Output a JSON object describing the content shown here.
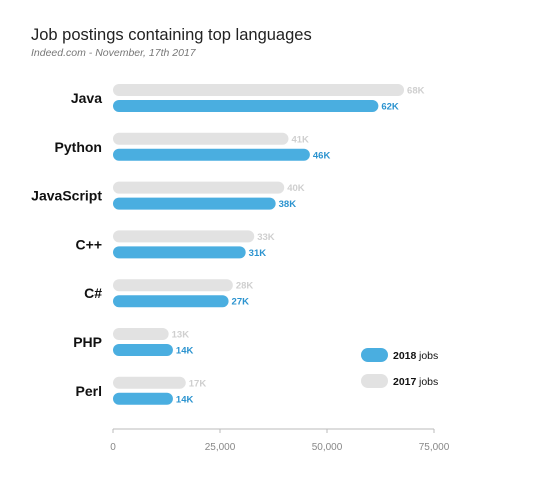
{
  "chart_data": {
    "type": "bar",
    "orientation": "horizontal",
    "title": "Job postings containing top languages",
    "subtitle": "Indeed.com - November, 17th 2017",
    "categories": [
      "Java",
      "Python",
      "JavaScript",
      "C++",
      "C#",
      "PHP",
      "Perl"
    ],
    "series": [
      {
        "name": "2017",
        "color": "#e2e2e2",
        "label_color": "#cfcfcf",
        "values": [
          68000,
          41000,
          40000,
          33000,
          28000,
          13000,
          17000
        ],
        "labels": [
          "68K",
          "41K",
          "40K",
          "33K",
          "28K",
          "13K",
          "17K"
        ]
      },
      {
        "name": "2018",
        "color": "#4aaee0",
        "label_color": "#2b93cf",
        "values": [
          62000,
          46000,
          38000,
          31000,
          27000,
          14000,
          14000
        ],
        "labels": [
          "62K",
          "46K",
          "38K",
          "31K",
          "27K",
          "14K",
          "14K"
        ]
      }
    ],
    "legend": [
      {
        "year": "2018",
        "suffix": "jobs",
        "color": "#4aaee0"
      },
      {
        "year": "2017",
        "suffix": "jobs",
        "color": "#e2e2e2"
      }
    ],
    "xlim": [
      0,
      75000
    ],
    "xticks": [
      0,
      25000,
      50000,
      75000
    ],
    "xtick_labels": [
      "0",
      "25,000",
      "50,000",
      "75,000"
    ],
    "legend_position": "bottom-right",
    "grid": false
  }
}
